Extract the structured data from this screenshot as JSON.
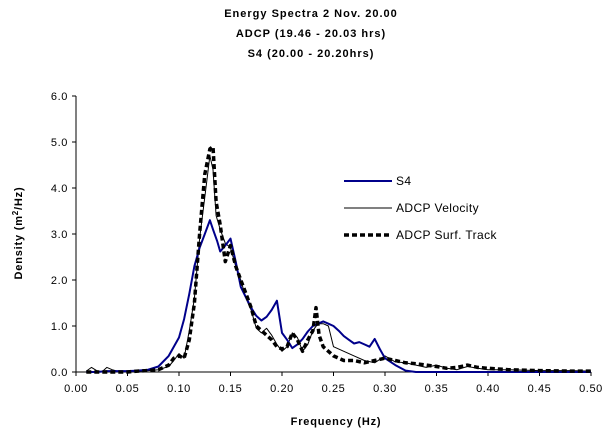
{
  "chart_data": {
    "type": "line",
    "title": [
      "Energy Spectra 2 Nov. 20.00",
      "ADCP (19.46 - 20.03 hrs)",
      "S4 (20.00 - 20.20hrs)"
    ],
    "xlabel": "Frequency (Hz)",
    "ylabel": "Density (m2/Hz)",
    "ylabel_parts": {
      "pre": "Density (m",
      "sup": "2",
      "post": "/Hz)"
    },
    "xlim": [
      0.0,
      0.5
    ],
    "ylim": [
      0.0,
      6.0
    ],
    "xticks": [
      "0.00",
      "0.05",
      "0.10",
      "0.15",
      "0.20",
      "0.25",
      "0.30",
      "0.35",
      "0.40",
      "0.45",
      "0.50"
    ],
    "yticks": [
      "0.0",
      "1.0",
      "2.0",
      "3.0",
      "4.0",
      "5.0",
      "6.0"
    ],
    "grid": false,
    "legend_position": "right",
    "series": [
      {
        "name": "S4",
        "color": "#00008b",
        "style": "solid-thick",
        "x": [
          0.01,
          0.02,
          0.03,
          0.04,
          0.05,
          0.06,
          0.07,
          0.08,
          0.09,
          0.1,
          0.105,
          0.11,
          0.115,
          0.12,
          0.125,
          0.13,
          0.133,
          0.137,
          0.14,
          0.145,
          0.15,
          0.155,
          0.16,
          0.165,
          0.17,
          0.175,
          0.18,
          0.185,
          0.19,
          0.195,
          0.2,
          0.205,
          0.21,
          0.215,
          0.22,
          0.225,
          0.23,
          0.235,
          0.24,
          0.245,
          0.25,
          0.255,
          0.26,
          0.265,
          0.27,
          0.275,
          0.28,
          0.285,
          0.29,
          0.295,
          0.3,
          0.31,
          0.32,
          0.33,
          0.35,
          0.4,
          0.45,
          0.5
        ],
        "y": [
          0.0,
          0.0,
          0.02,
          0.02,
          0.02,
          0.03,
          0.05,
          0.12,
          0.35,
          0.75,
          1.15,
          1.7,
          2.3,
          2.7,
          3.0,
          3.3,
          3.1,
          2.85,
          2.62,
          2.75,
          2.9,
          2.4,
          1.85,
          1.62,
          1.4,
          1.22,
          1.12,
          1.2,
          1.35,
          1.55,
          0.85,
          0.7,
          0.52,
          0.6,
          0.72,
          0.88,
          1.0,
          1.05,
          1.1,
          1.05,
          1.0,
          0.9,
          0.78,
          0.7,
          0.62,
          0.65,
          0.6,
          0.55,
          0.72,
          0.5,
          0.3,
          0.15,
          0.03,
          0.0,
          0.0,
          0.0,
          0.0,
          0.0
        ]
      },
      {
        "name": "ADCP Velocity",
        "color": "#000000",
        "style": "solid-thin",
        "x": [
          0.01,
          0.015,
          0.02,
          0.025,
          0.03,
          0.035,
          0.04,
          0.05,
          0.06,
          0.07,
          0.08,
          0.09,
          0.095,
          0.1,
          0.105,
          0.11,
          0.115,
          0.12,
          0.125,
          0.13,
          0.133,
          0.136,
          0.14,
          0.145,
          0.15,
          0.155,
          0.16,
          0.165,
          0.17,
          0.175,
          0.18,
          0.185,
          0.19,
          0.195,
          0.2,
          0.205,
          0.21,
          0.215,
          0.22,
          0.225,
          0.23,
          0.235,
          0.24,
          0.245,
          0.25,
          0.26,
          0.27,
          0.28,
          0.29,
          0.3,
          0.31,
          0.32,
          0.33,
          0.34,
          0.35,
          0.36,
          0.37,
          0.38,
          0.39,
          0.4,
          0.42,
          0.45,
          0.48,
          0.5
        ],
        "y": [
          0.02,
          0.1,
          0.03,
          0.0,
          0.1,
          0.05,
          0.02,
          0.02,
          0.02,
          0.03,
          0.05,
          0.12,
          0.25,
          0.4,
          0.3,
          0.9,
          1.6,
          2.9,
          3.8,
          4.7,
          4.4,
          3.4,
          3.1,
          2.8,
          2.7,
          2.3,
          2.0,
          1.6,
          1.35,
          0.95,
          0.85,
          0.95,
          0.8,
          0.6,
          0.45,
          0.55,
          0.85,
          0.75,
          0.45,
          0.6,
          0.9,
          1.05,
          1.05,
          1.0,
          0.55,
          0.45,
          0.35,
          0.25,
          0.2,
          0.35,
          0.22,
          0.2,
          0.15,
          0.1,
          0.15,
          0.08,
          0.05,
          0.12,
          0.08,
          0.05,
          0.05,
          0.03,
          0.03,
          0.02
        ]
      },
      {
        "name": "ADCP Surf. Track",
        "color": "#000000",
        "style": "dashed-thick",
        "x": [
          0.01,
          0.02,
          0.03,
          0.04,
          0.05,
          0.06,
          0.07,
          0.08,
          0.09,
          0.095,
          0.1,
          0.105,
          0.11,
          0.115,
          0.12,
          0.125,
          0.13,
          0.133,
          0.136,
          0.14,
          0.145,
          0.15,
          0.155,
          0.16,
          0.165,
          0.17,
          0.175,
          0.18,
          0.185,
          0.19,
          0.195,
          0.2,
          0.205,
          0.21,
          0.215,
          0.22,
          0.225,
          0.23,
          0.233,
          0.236,
          0.24,
          0.245,
          0.25,
          0.26,
          0.27,
          0.28,
          0.29,
          0.3,
          0.31,
          0.32,
          0.33,
          0.34,
          0.35,
          0.36,
          0.37,
          0.38,
          0.39,
          0.4,
          0.42,
          0.45,
          0.48,
          0.5
        ],
        "y": [
          0.0,
          0.0,
          0.0,
          0.0,
          0.0,
          0.02,
          0.03,
          0.05,
          0.15,
          0.3,
          0.35,
          0.3,
          0.7,
          1.5,
          3.0,
          4.3,
          4.85,
          4.9,
          3.7,
          3.2,
          2.4,
          2.75,
          2.3,
          2.0,
          1.7,
          1.4,
          1.0,
          0.9,
          0.8,
          0.7,
          0.55,
          0.5,
          0.55,
          0.85,
          0.7,
          0.45,
          0.7,
          0.9,
          1.4,
          0.8,
          0.55,
          0.45,
          0.35,
          0.25,
          0.25,
          0.2,
          0.25,
          0.3,
          0.25,
          0.2,
          0.18,
          0.15,
          0.12,
          0.08,
          0.1,
          0.15,
          0.1,
          0.08,
          0.05,
          0.03,
          0.02,
          0.02
        ]
      }
    ]
  }
}
